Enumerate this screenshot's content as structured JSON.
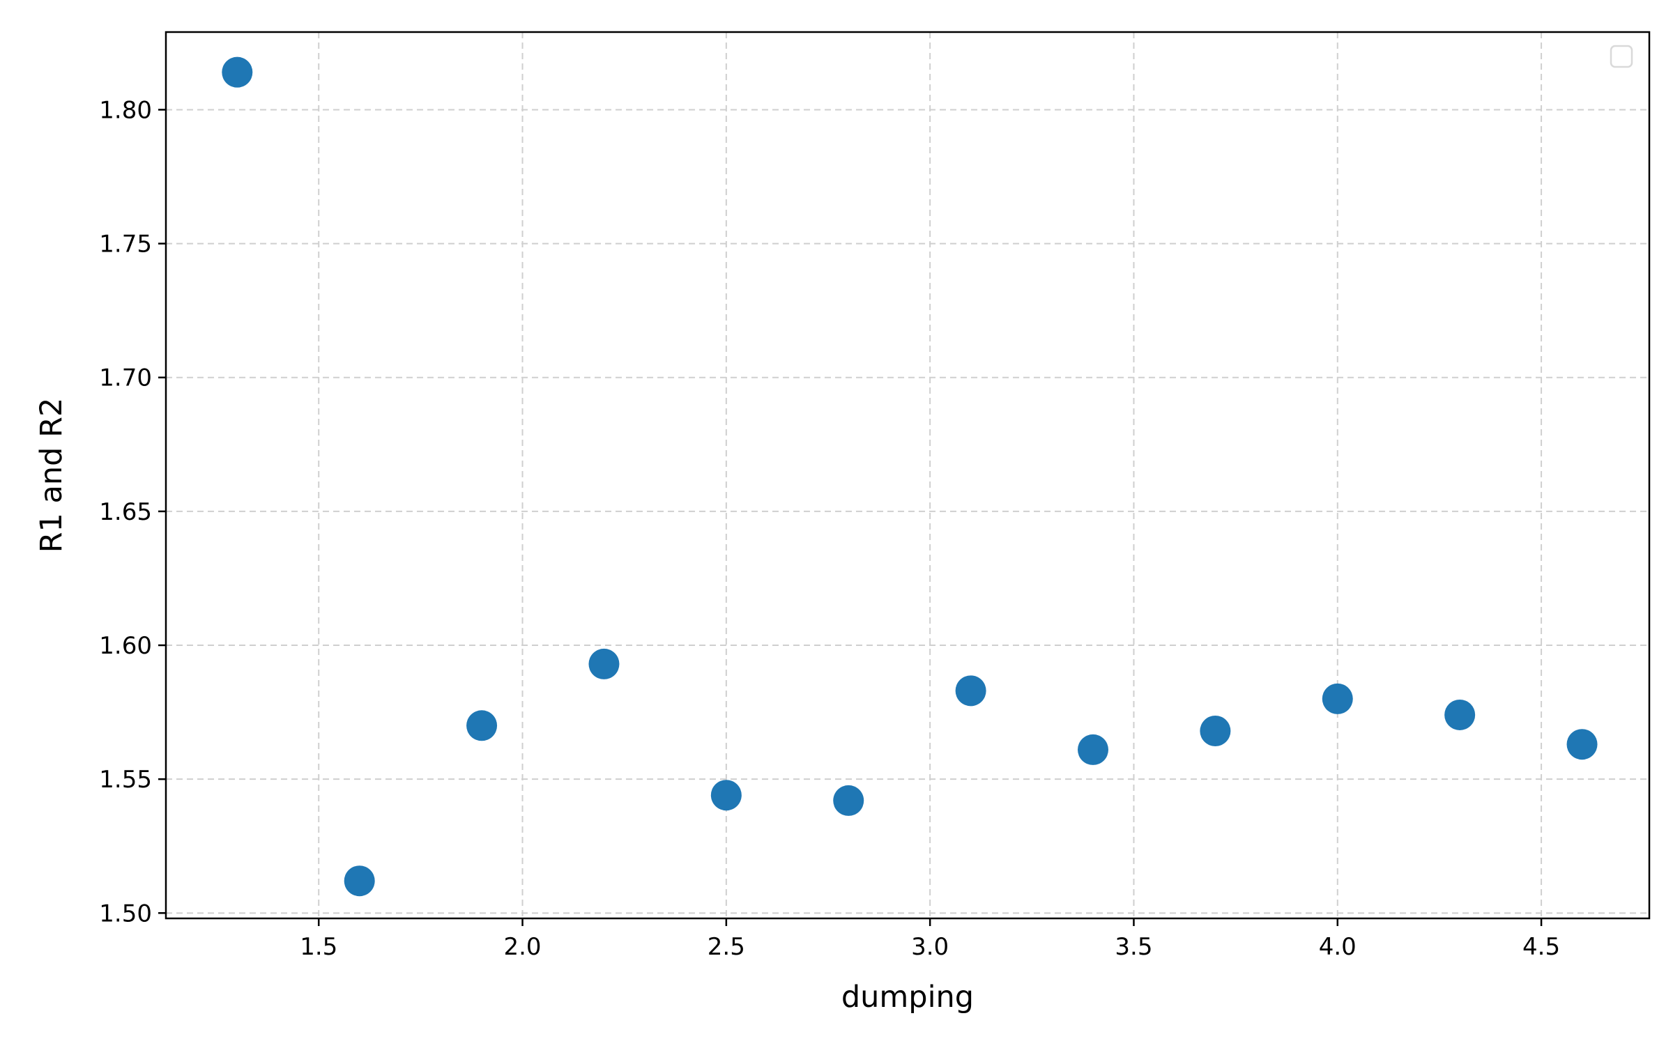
{
  "chart_data": {
    "type": "scatter",
    "xlabel": "dumping",
    "ylabel": "R1  and R2",
    "xlim": [
      1.125,
      4.765
    ],
    "ylim": [
      1.498,
      1.829
    ],
    "xticks": [
      "1.5",
      "2.0",
      "2.5",
      "3.0",
      "3.5",
      "4.0",
      "4.5"
    ],
    "yticks": [
      "1.50",
      "1.55",
      "1.60",
      "1.65",
      "1.70",
      "1.75",
      "1.80"
    ],
    "grid": true,
    "legend": "top-right (empty)",
    "series": [
      {
        "color": "#1f77b4",
        "x": [
          1.3,
          1.6,
          1.9,
          2.2,
          2.5,
          2.8,
          3.1,
          3.4,
          3.7,
          4.0,
          4.3,
          4.6
        ],
        "y": [
          1.814,
          1.512,
          1.57,
          1.593,
          1.544,
          1.542,
          1.583,
          1.561,
          1.568,
          1.58,
          1.574,
          1.563
        ]
      }
    ]
  }
}
